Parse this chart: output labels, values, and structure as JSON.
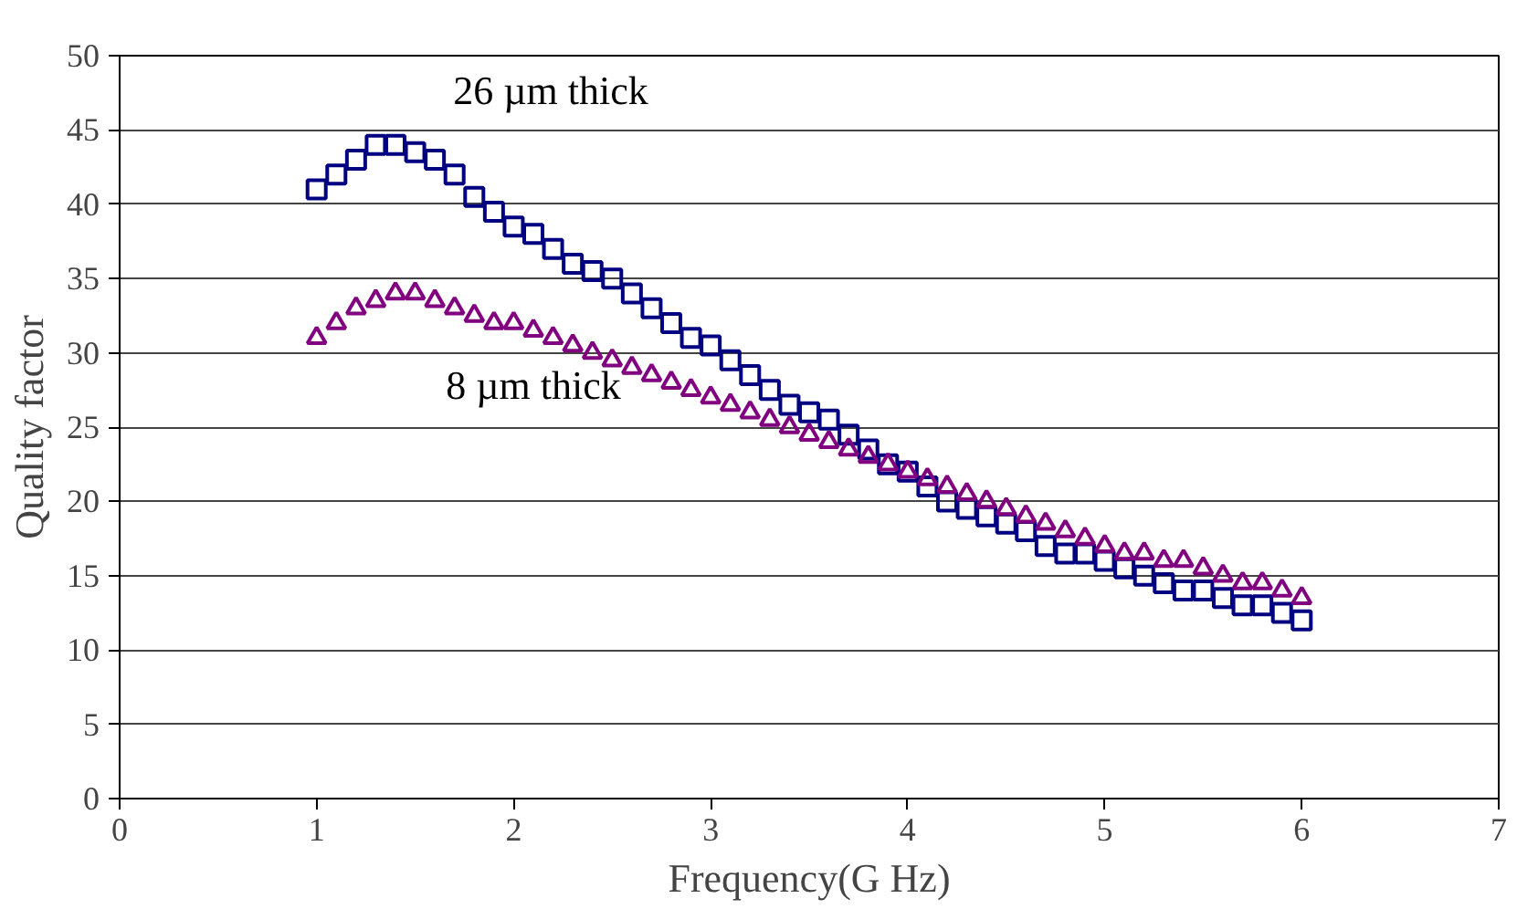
{
  "chart_data": {
    "type": "scatter",
    "xlabel": "Frequency(G Hz)",
    "ylabel": "Quality factor",
    "x": [
      1.0,
      1.1,
      1.2,
      1.3,
      1.4,
      1.5,
      1.6,
      1.7,
      1.8,
      1.9,
      2.0,
      2.1,
      2.2,
      2.3,
      2.4,
      2.5,
      2.6,
      2.7,
      2.8,
      2.9,
      3.0,
      3.1,
      3.2,
      3.3,
      3.4,
      3.5,
      3.6,
      3.7,
      3.8,
      3.9,
      4.0,
      4.1,
      4.2,
      4.3,
      4.4,
      4.5,
      4.6,
      4.7,
      4.8,
      4.9,
      5.0,
      5.1,
      5.2,
      5.3,
      5.4,
      5.5,
      5.6,
      5.7,
      5.8,
      5.9,
      6.0
    ],
    "series": [
      {
        "name": "26 µm thick",
        "color": "#000080",
        "marker": "square",
        "values": [
          41,
          42,
          43,
          44,
          44,
          43.5,
          43,
          42,
          40.5,
          39.5,
          38.5,
          38,
          37,
          36,
          35.5,
          35,
          34,
          33,
          32,
          31,
          30.5,
          29.5,
          28.5,
          27.5,
          26.5,
          26,
          25.5,
          24.5,
          23.5,
          22.5,
          22,
          21,
          20,
          19.5,
          19,
          18.5,
          18,
          17,
          16.5,
          16.5,
          16,
          15.5,
          15,
          14.5,
          14,
          14,
          13.5,
          13,
          13,
          12.5,
          12
        ]
      },
      {
        "name": "8 µm thick",
        "color": "#800080",
        "marker": "triangle",
        "values": [
          31,
          32,
          33,
          33.5,
          34,
          34,
          33.5,
          33,
          32.5,
          32,
          32,
          31.5,
          31,
          30.5,
          30,
          29.5,
          29,
          28.5,
          28,
          27.5,
          27,
          26.5,
          26,
          25.5,
          25,
          24.5,
          24,
          23.5,
          23,
          22.5,
          22,
          21.5,
          21,
          20.5,
          20,
          19.5,
          19,
          18.5,
          18,
          17.5,
          17,
          16.5,
          16.5,
          16,
          16,
          15.5,
          15,
          14.5,
          14.5,
          14,
          13.5
        ]
      }
    ],
    "xlim": [
      0,
      7
    ],
    "xticks": [
      0,
      1,
      2,
      3,
      4,
      5,
      6,
      7
    ],
    "ylim": [
      0,
      50
    ],
    "yticks": [
      0,
      5,
      10,
      15,
      20,
      25,
      30,
      35,
      40,
      45,
      50
    ],
    "grid": "y"
  }
}
